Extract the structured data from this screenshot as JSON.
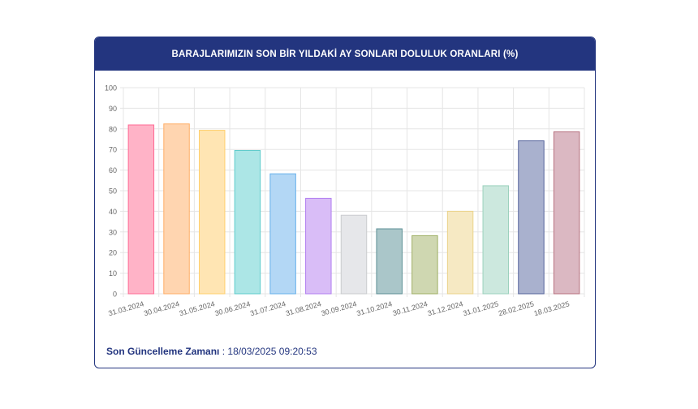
{
  "header": {
    "title": "BARAJLARIMIZIN SON BİR YILDAKİ AY SONLARI DOLULUK ORANLARI (%)"
  },
  "footer": {
    "label": "Son Güncelleme Zamanı",
    "separator": " : ",
    "value": "18/03/2025 09:20:53"
  },
  "colors": {
    "header_bg": "#23357f",
    "grid": "#e5e5e5"
  },
  "chart_data": {
    "type": "bar",
    "title": "BARAJLARIMIZIN SON BİR YILDAKİ AY SONLARI DOLULUK ORANLARI (%)",
    "categories": [
      "31.03.2024",
      "30.04.2024",
      "31.05.2024",
      "30.06.2024",
      "31.07.2024",
      "31.08.2024",
      "30.09.2024",
      "31.10.2024",
      "30.11.2024",
      "31.12.2024",
      "31.01.2025",
      "28.02.2025",
      "18.03.2025"
    ],
    "values": [
      81.9,
      82.4,
      79.3,
      69.5,
      58.2,
      46.3,
      38.1,
      31.5,
      28.2,
      40.0,
      52.4,
      74.2,
      78.6
    ],
    "bar_colors": [
      "#ffb3c7",
      "#ffd5b0",
      "#ffe5b3",
      "#ace6e6",
      "#b3d7f5",
      "#d9bdf7",
      "#e6e7ea",
      "#aac6c9",
      "#cfd7b1",
      "#f6e9c3",
      "#cce8de",
      "#a9b1ce",
      "#dbb8c2"
    ],
    "bar_borders": [
      "#ff6b95",
      "#ffad66",
      "#ffcf6b",
      "#5ccbcb",
      "#66b0eb",
      "#b17ef0",
      "#c9cbce",
      "#5c8f95",
      "#9faf64",
      "#ebd38a",
      "#9bd1bd",
      "#54639b",
      "#b7717f"
    ],
    "yticks": [
      0,
      10,
      20,
      30,
      40,
      50,
      60,
      70,
      80,
      90,
      100
    ],
    "ylim": [
      0,
      100
    ],
    "grid": true,
    "legend": false
  }
}
